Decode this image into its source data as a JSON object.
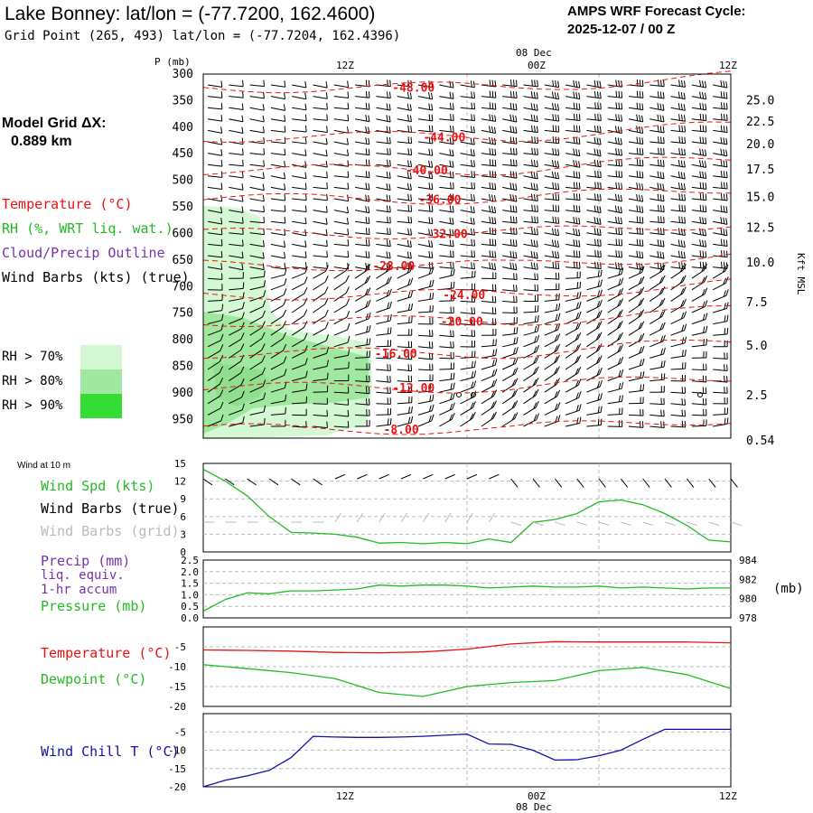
{
  "header": {
    "title": "Lake Bonney:  lat/lon = (-77.7200, 162.4600)",
    "subtitle": "Grid Point (265, 493) lat/lon = (-77.7204, 162.4396)",
    "cycle_line1": "AMPS WRF Forecast Cycle:",
    "cycle_line2": "2025-12-07 / 00  Z"
  },
  "sidebar": {
    "model_grid_label": "Model Grid ΔX:",
    "model_grid_value": "0.889 km",
    "legend_temperature": "Temperature (°C)",
    "legend_rh": "RH (%, WRT liq. wat.)",
    "legend_cloud": "Cloud/Precip Outline",
    "legend_wind": "Wind Barbs (kts) (true)",
    "rh_70": "RH > 70%",
    "rh_80": "RH > 80%",
    "rh_90": "RH > 90%"
  },
  "colors": {
    "temperature": "#ee1111",
    "rh": "#22bb22",
    "cloud": "#7733aa",
    "rh70": "#d4f8d4",
    "rh80": "#a0e8a0",
    "rh90": "#33dd33",
    "wind_chill": "#1111aa",
    "gridgray": "#bbbbbb"
  },
  "chart_data": [
    {
      "type": "contour",
      "panel": "vertical cross-section",
      "y_axis_title": "P (mb)",
      "y_left_ticks": [
        "300",
        "350",
        "400",
        "450",
        "500",
        "550",
        "600",
        "650",
        "700",
        "750",
        "800",
        "850",
        "900",
        "950"
      ],
      "y_right_label": "Kft MSL",
      "y_right_ticks": [
        {
          "label": "25.0",
          "p": 350
        },
        {
          "label": "22.5",
          "p": 390
        },
        {
          "label": "20.0",
          "p": 433
        },
        {
          "label": "17.5",
          "p": 480
        },
        {
          "label": "15.0",
          "p": 532
        },
        {
          "label": "12.5",
          "p": 590
        },
        {
          "label": "10.0",
          "p": 655
        },
        {
          "label": "7.5",
          "p": 730
        },
        {
          "label": "5.0",
          "p": 812
        },
        {
          "label": "2.5",
          "p": 905
        },
        {
          "label": "0.54",
          "p": 990
        }
      ],
      "x_hours": [
        0,
        24
      ],
      "x_top_ticks": [
        {
          "hour": 12,
          "label": "12Z"
        },
        {
          "hour": 24,
          "label": "12Z"
        }
      ],
      "x_top_center": {
        "hour": 18,
        "label": "00Z",
        "date": "08 Dec"
      },
      "temperature_contours": [
        {
          "label": "-48.00",
          "p": 325,
          "label_hour": 8.6
        },
        {
          "label": "-44.00",
          "p": 418,
          "label_hour": 10.0
        },
        {
          "label": "-40.00",
          "p": 480,
          "label_hour": 9.2
        },
        {
          "label": "-36.00",
          "p": 535,
          "label_hour": 9.8
        },
        {
          "label": "-32.00",
          "p": 600,
          "label_hour": 10.1
        },
        {
          "label": "-28.00",
          "p": 660,
          "label_hour": 7.7
        },
        {
          "label": "-24.00",
          "p": 715,
          "label_hour": 10.9
        },
        {
          "label": "-20.00",
          "p": 765,
          "label_hour": 10.8
        },
        {
          "label": "-16.00",
          "p": 825,
          "label_hour": 7.8
        },
        {
          "label": "-12.00",
          "p": 890,
          "label_hour": 8.6
        },
        {
          "label": "-8.00",
          "p": 968,
          "label_hour": 8.2
        }
      ]
    },
    {
      "type": "line",
      "panel": "wind at 10 m",
      "panel_title": "Wind at 10 m",
      "legend": [
        "Wind Spd (kts)",
        "Wind Barbs (true)",
        "Wind Barbs (grid)"
      ],
      "y_ticks": [
        "15",
        "12",
        "9",
        "6",
        "3",
        "0"
      ],
      "ylim": [
        0,
        15
      ],
      "x_ticks": [
        "12Z",
        "00Z",
        "12Z"
      ],
      "series": [
        {
          "name": "Wind Spd (kts)",
          "x": [
            0,
            1,
            2,
            3,
            4,
            5,
            6,
            7,
            8,
            9,
            10,
            11,
            12,
            13,
            14,
            15,
            16,
            17,
            18,
            19,
            20,
            21,
            22,
            23,
            24
          ],
          "y": [
            14,
            12,
            9.5,
            6,
            3.3,
            3.2,
            3,
            2.5,
            1.5,
            1.6,
            1.4,
            1.6,
            1.4,
            2.2,
            1.6,
            5,
            5.5,
            6.5,
            8.5,
            8.8,
            8,
            6.5,
            4.5,
            2,
            1.7
          ]
        }
      ]
    },
    {
      "type": "line",
      "panel": "precip and pressure",
      "legend": [
        "Precip (mm)",
        "liq. equiv.",
        "1-hr accum",
        "Pressure (mb)"
      ],
      "y_left_ticks": [
        "2.5",
        "2.0",
        "1.5",
        "1.0",
        "0.5",
        "0.0"
      ],
      "ylim_left": [
        0,
        2.5
      ],
      "y_right_ticks": [
        "984",
        "982",
        "980",
        "978"
      ],
      "y_right_label": "(mb)",
      "ylim_right": [
        978,
        984
      ],
      "series": [
        {
          "name": "Pressure (mb)",
          "x": [
            0,
            1,
            2,
            3,
            4,
            5,
            6,
            7,
            8,
            9,
            10,
            11,
            12,
            13,
            14,
            15,
            16,
            17,
            18,
            19,
            20,
            21,
            22,
            23,
            24
          ],
          "y": [
            978.7,
            979.9,
            980.6,
            980.5,
            980.8,
            980.8,
            980.9,
            981,
            981.4,
            981.3,
            981.4,
            981.4,
            981.3,
            981.1,
            981.2,
            981.3,
            981.2,
            981.2,
            981.3,
            981.1,
            981.2,
            981.1,
            981,
            981.1,
            981.1
          ]
        }
      ]
    },
    {
      "type": "line",
      "panel": "temperature and dewpoint",
      "legend": [
        "Temperature (°C)",
        "Dewpoint (°C)"
      ],
      "y_ticks": [
        "-5",
        "-10",
        "-15",
        "-20"
      ],
      "ylim": [
        -20,
        0
      ],
      "series": [
        {
          "name": "Temperature (°C)",
          "x": [
            0,
            2,
            4,
            6,
            8,
            10,
            12,
            14,
            16,
            18,
            20,
            22,
            24
          ],
          "y": [
            -5.8,
            -5.9,
            -6.1,
            -6.4,
            -6.5,
            -6.3,
            -5.6,
            -4.3,
            -3.7,
            -3.8,
            -3.8,
            -3.8,
            -4.0
          ]
        },
        {
          "name": "Dewpoint (°C)",
          "x": [
            0,
            2,
            4,
            6,
            8,
            10,
            12,
            14,
            16,
            18,
            20,
            22,
            24
          ],
          "y": [
            -9.5,
            -10.5,
            -11.5,
            -13,
            -16.5,
            -17.5,
            -15,
            -14,
            -13.5,
            -11,
            -10.2,
            -12,
            -15.5
          ]
        }
      ]
    },
    {
      "type": "line",
      "panel": "wind chill",
      "legend": [
        "Wind Chill T (°C)"
      ],
      "y_ticks": [
        "-5",
        "-10",
        "-15",
        "-20"
      ],
      "ylim": [
        -20,
        0
      ],
      "x_ticks": [
        "12Z",
        "00Z",
        "12Z"
      ],
      "x_date": "08 Dec",
      "series": [
        {
          "name": "Wind Chill T (°C)",
          "x": [
            0,
            1,
            2,
            3,
            4,
            5,
            6,
            7,
            8,
            9,
            10,
            11,
            12,
            13,
            14,
            15,
            16,
            17,
            18,
            19,
            20,
            21,
            22,
            23,
            24
          ],
          "y": [
            -20,
            -18.2,
            -17,
            -15.5,
            -12,
            -6.2,
            -6.4,
            -6.5,
            -6.5,
            -6.4,
            -6.2,
            -5.9,
            -5.6,
            -8.3,
            -8.4,
            -10,
            -12.7,
            -12.6,
            -11.5,
            -10,
            -7,
            -4.3,
            -4.3,
            -4.3,
            -4.3
          ]
        }
      ]
    }
  ]
}
